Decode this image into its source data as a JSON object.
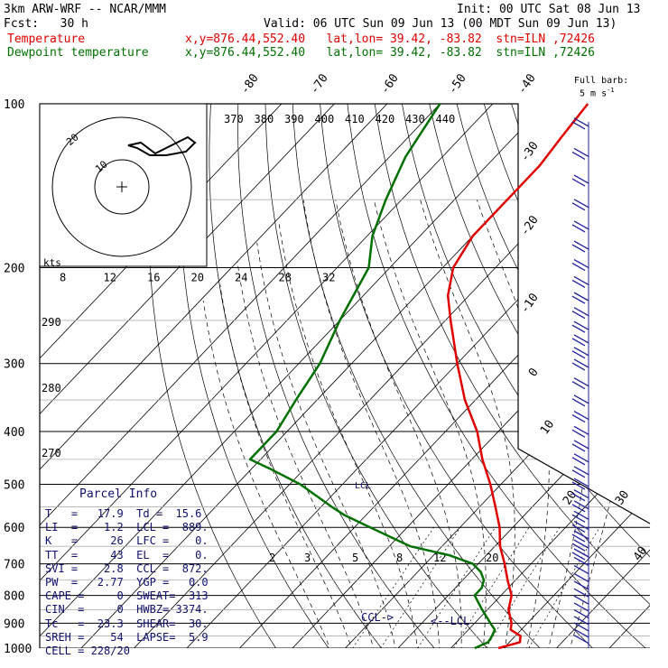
{
  "header": {
    "model": "3km ARW-WRF -- NCAR/MMM",
    "init": "Init: 00 UTC Sat 08 Jun 13",
    "fcst": "Fcst:   30 h",
    "valid": "Valid: 06 UTC Sun 09 Jun 13 (00 MDT Sun 09 Jun 13)",
    "temp_label": "Temperature",
    "temp_loc": "x,y=876.44,552.40   lat,lon= 39.42, -83.82  stn=ILN ,72426",
    "dew_label": "Dewpoint temperature",
    "dew_loc": "x,y=876.44,552.40   lat,lon= 39.42, -83.82  stn=ILN ,72426",
    "barb_note_1": "Full barb:",
    "barb_note_2": "5 m s",
    "barb_note_exp": "-1"
  },
  "colors": {
    "temperature": "#e00000",
    "dewpoint": "#007000",
    "parcel_text": "#101070",
    "barbs": "#2020a0"
  },
  "chart_data": {
    "type": "line",
    "title": "",
    "pressure_levels": [
      "100",
      "200",
      "300",
      "400",
      "500",
      "600",
      "700",
      "800",
      "900",
      "1000"
    ],
    "isotherm_labels": [
      "-80",
      "-70",
      "-60",
      "-50",
      "-40",
      "-30",
      "-20",
      "-10",
      "0",
      "10",
      "20",
      "30",
      "40"
    ],
    "theta_labels": [
      "370",
      "380",
      "390",
      "400",
      "410",
      "420",
      "430",
      "440"
    ],
    "theta_labels_left": [
      "290",
      "280",
      "270"
    ],
    "mixing_ratio_labels": [
      "2",
      "3",
      "5",
      "8",
      "12",
      "20"
    ],
    "wind_scale_label": "kts",
    "wind_scale_ticks": [
      "8",
      "12",
      "16",
      "20",
      "24",
      "28",
      "32"
    ],
    "hodo_ring_labels": [
      "10",
      "20"
    ],
    "series": [
      {
        "name": "Temperature",
        "points": [
          [
            1000,
            19
          ],
          [
            975,
            22
          ],
          [
            950,
            21
          ],
          [
            925,
            18
          ],
          [
            900,
            17
          ],
          [
            850,
            14
          ],
          [
            800,
            12
          ],
          [
            750,
            8.5
          ],
          [
            700,
            5
          ],
          [
            650,
            1
          ],
          [
            600,
            -2.5
          ],
          [
            550,
            -7
          ],
          [
            500,
            -12
          ],
          [
            450,
            -18
          ],
          [
            400,
            -24
          ],
          [
            350,
            -32
          ],
          [
            300,
            -40
          ],
          [
            250,
            -49
          ],
          [
            225,
            -54
          ],
          [
            200,
            -58
          ],
          [
            175,
            -60
          ],
          [
            150,
            -60
          ],
          [
            130,
            -60
          ],
          [
            115,
            -61
          ],
          [
            100,
            -62
          ]
        ]
      },
      {
        "name": "Dewpoint temperature",
        "points": [
          [
            1000,
            14.5
          ],
          [
            975,
            16
          ],
          [
            950,
            15.6
          ],
          [
            925,
            15
          ],
          [
            900,
            13
          ],
          [
            850,
            9
          ],
          [
            800,
            5
          ],
          [
            775,
            5
          ],
          [
            750,
            4
          ],
          [
            725,
            2
          ],
          [
            700,
            -1
          ],
          [
            675,
            -7
          ],
          [
            650,
            -16
          ],
          [
            600,
            -27
          ],
          [
            570,
            -34
          ],
          [
            550,
            -38
          ],
          [
            500,
            -48
          ],
          [
            470,
            -56
          ],
          [
            450,
            -62
          ],
          [
            430,
            -62
          ],
          [
            400,
            -62
          ],
          [
            350,
            -64
          ],
          [
            300,
            -66
          ],
          [
            250,
            -70
          ],
          [
            200,
            -74
          ],
          [
            175,
            -79
          ],
          [
            150,
            -83
          ],
          [
            125,
            -87
          ],
          [
            100,
            -90
          ]
        ]
      }
    ],
    "annotations": [
      "LCL",
      "CCL",
      "<--LCL",
      "CCL->"
    ]
  },
  "parcel_info": {
    "title": "Parcel Info",
    "rows": [
      "T   =   17.9  Td =  15.6",
      "LI  =    1.2  LCL =  889.",
      "K   =     26  LFC =    0.",
      "TT  =     43  EL  =    0.",
      "SVI =    2.8  CCL =  872.",
      "PW  =   2.77  YGP =   0.0",
      "CAPE =     0  SWEAT=  313",
      "CIN  =     0  HWBZ= 3374.",
      "Tc   =  23.3  SHEAR=  30.",
      "SREH =    54  LAPSE=  5.9",
      "CELL = 228/20"
    ]
  }
}
